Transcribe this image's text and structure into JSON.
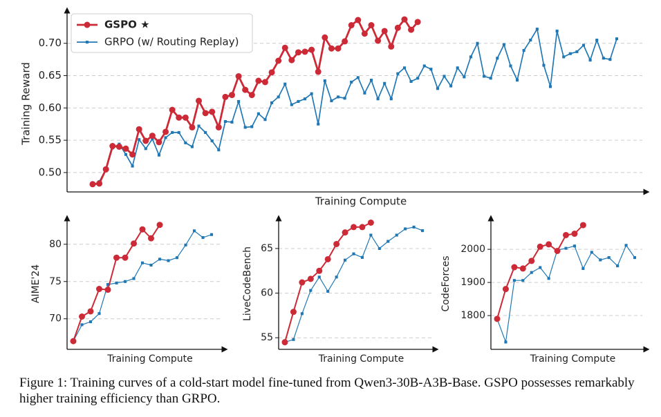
{
  "chart_data": [
    {
      "type": "line",
      "xlabel": "Training Compute",
      "ylabel": "Training Reward",
      "legend": "upper left",
      "grid": true,
      "ylim": [
        0.47,
        0.751
      ],
      "yticks": [
        {
          "value": 0.5,
          "label": "0.50"
        },
        0.55,
        {
          "value": 0.6,
          "label": "0.60"
        },
        0.65,
        {
          "value": 0.7,
          "label": "0.70"
        }
      ],
      "series": [
        {
          "name": "GSPO ★",
          "color": "#cc2a36",
          "marker": "o",
          "values": [
            0.482,
            0.483,
            0.505,
            0.541,
            0.54,
            0.537,
            0.528,
            0.567,
            0.549,
            0.557,
            0.547,
            0.563,
            0.597,
            0.585,
            0.585,
            0.57,
            0.611,
            0.592,
            0.594,
            0.57,
            0.617,
            0.62,
            0.649,
            0.628,
            0.62,
            0.642,
            0.64,
            0.655,
            0.673,
            0.693,
            0.674,
            0.686,
            0.687,
            0.69,
            0.656,
            0.709,
            0.692,
            0.692,
            0.703,
            0.728,
            0.736,
            0.715,
            0.728,
            0.704,
            0.719,
            0.695,
            0.724,
            0.737,
            0.721,
            0.733
          ]
        },
        {
          "name": "GRPO (w/ Routing Replay)",
          "color": "#1f77b4",
          "marker": "s",
          "values": [
            null,
            0.486,
            0.505,
            0.538,
            0.544,
            0.528,
            0.51,
            0.551,
            0.537,
            0.552,
            0.527,
            0.554,
            0.562,
            0.562,
            0.546,
            0.54,
            0.572,
            0.562,
            0.549,
            0.535,
            0.579,
            0.578,
            0.61,
            0.57,
            0.571,
            0.591,
            0.582,
            0.608,
            0.617,
            0.637,
            0.605,
            0.61,
            0.614,
            0.622,
            0.575,
            0.642,
            0.611,
            0.617,
            0.615,
            0.64,
            0.647,
            0.623,
            0.643,
            0.614,
            0.638,
            0.614,
            0.653,
            0.662,
            0.641,
            0.646,
            0.665,
            0.66,
            0.63,
            0.649,
            0.634,
            0.662,
            0.648,
            0.679,
            0.7,
            0.649,
            0.646,
            0.677,
            0.698,
            0.665,
            0.643,
            0.689,
            0.705,
            0.722,
            0.666,
            0.633,
            0.719,
            0.679,
            0.684,
            0.687,
            0.697,
            0.674,
            0.705,
            0.677,
            0.675,
            0.707
          ]
        }
      ]
    },
    {
      "type": "line",
      "xlabel": "Training Compute",
      "ylabel": "AIME'24",
      "grid": true,
      "ylim": [
        65.9,
        83.5
      ],
      "yticks": [
        70,
        75,
        80
      ],
      "series": [
        {
          "name": "GSPO ★",
          "color": "#cc2a36",
          "marker": "o",
          "values": [
            67.0,
            70.3,
            71.0,
            74.0,
            73.9,
            78.2,
            78.2,
            80.1,
            82.0,
            80.8,
            82.6
          ]
        },
        {
          "name": "GRPO (w/ Routing Replay)",
          "color": "#1f77b4",
          "marker": "s",
          "values": [
            67.0,
            69.2,
            69.6,
            70.7,
            74.6,
            74.8,
            75.0,
            75.4,
            77.5,
            77.2,
            78.0,
            77.8,
            78.2,
            79.9,
            81.8,
            80.9,
            81.3
          ]
        }
      ]
    },
    {
      "type": "line",
      "xlabel": "Training Compute",
      "ylabel": "LiveCodeBench",
      "grid": true,
      "ylim": [
        53.7,
        68.4
      ],
      "yticks": [
        55,
        60,
        65
      ],
      "series": [
        {
          "name": "GSPO ★",
          "color": "#cc2a36",
          "marker": "o",
          "values": [
            54.5,
            57.9,
            61.2,
            61.6,
            62.5,
            63.8,
            65.5,
            66.8,
            67.4,
            67.4,
            67.9
          ]
        },
        {
          "name": "GRPO (w/ Routing Replay)",
          "color": "#1f77b4",
          "marker": "s",
          "values": [
            54.5,
            54.8,
            57.7,
            60.3,
            61.8,
            60.2,
            61.8,
            63.7,
            64.4,
            64.0,
            66.5,
            65.0,
            65.8,
            66.5,
            67.2,
            67.4,
            67.0
          ]
        }
      ]
    },
    {
      "type": "line",
      "xlabel": "Training Compute",
      "ylabel": "CodeForces",
      "grid": true,
      "ylim": [
        1698,
        2094
      ],
      "yticks": [
        1800,
        1900,
        2000
      ],
      "series": [
        {
          "name": "GSPO ★",
          "color": "#cc2a36",
          "marker": "o",
          "values": [
            1790,
            1880,
            1946,
            1942,
            1965,
            2008,
            2015,
            1995,
            2043,
            2047,
            2073
          ]
        },
        {
          "name": "GRPO (w/ Routing Replay)",
          "color": "#1f77b4",
          "marker": "s",
          "values": [
            1790,
            1720,
            1906,
            1906,
            1930,
            1945,
            1912,
            1998,
            2003,
            2010,
            1942,
            1991,
            1968,
            1975,
            1950,
            2012,
            1975
          ]
        }
      ]
    }
  ],
  "caption": "Figure 1: Training curves of a cold-start model fine-tuned from Qwen3-30B-A3B-Base. GSPO possesses remarkably higher training efficiency than GRPO."
}
